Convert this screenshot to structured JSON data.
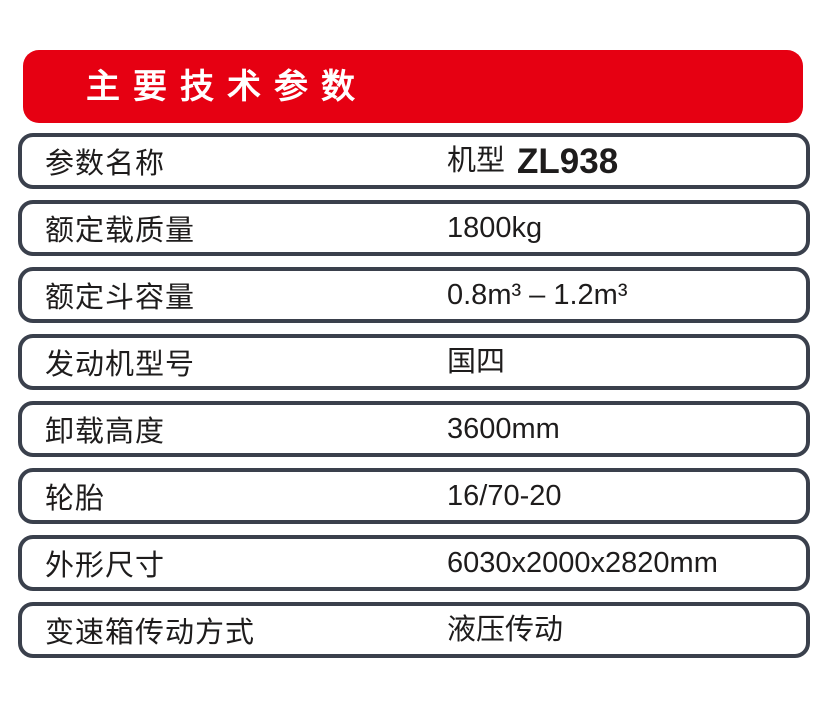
{
  "colors": {
    "accent_red": "#e60012",
    "row_border": "#3a404c",
    "text": "#1e1c1c",
    "title_text": "#ffffff",
    "background": "#ffffff"
  },
  "header": {
    "title": "主要技术参数"
  },
  "table": {
    "rows": [
      {
        "label": "参数名称",
        "value_prefix": "机型",
        "value": "ZL938",
        "emphasis": true
      },
      {
        "label": "额定载质量",
        "value": "1800kg"
      },
      {
        "label": "额定斗容量",
        "value": "0.8m³ – 1.2m³"
      },
      {
        "label": "发动机型号",
        "value": "国四"
      },
      {
        "label": "卸载高度",
        "value": "3600mm"
      },
      {
        "label": "轮胎",
        "value": "16/70-20"
      },
      {
        "label": "外形尺寸",
        "value": "6030x2000x2820mm"
      },
      {
        "label": "变速箱传动方式",
        "value": "液压传动"
      }
    ]
  }
}
